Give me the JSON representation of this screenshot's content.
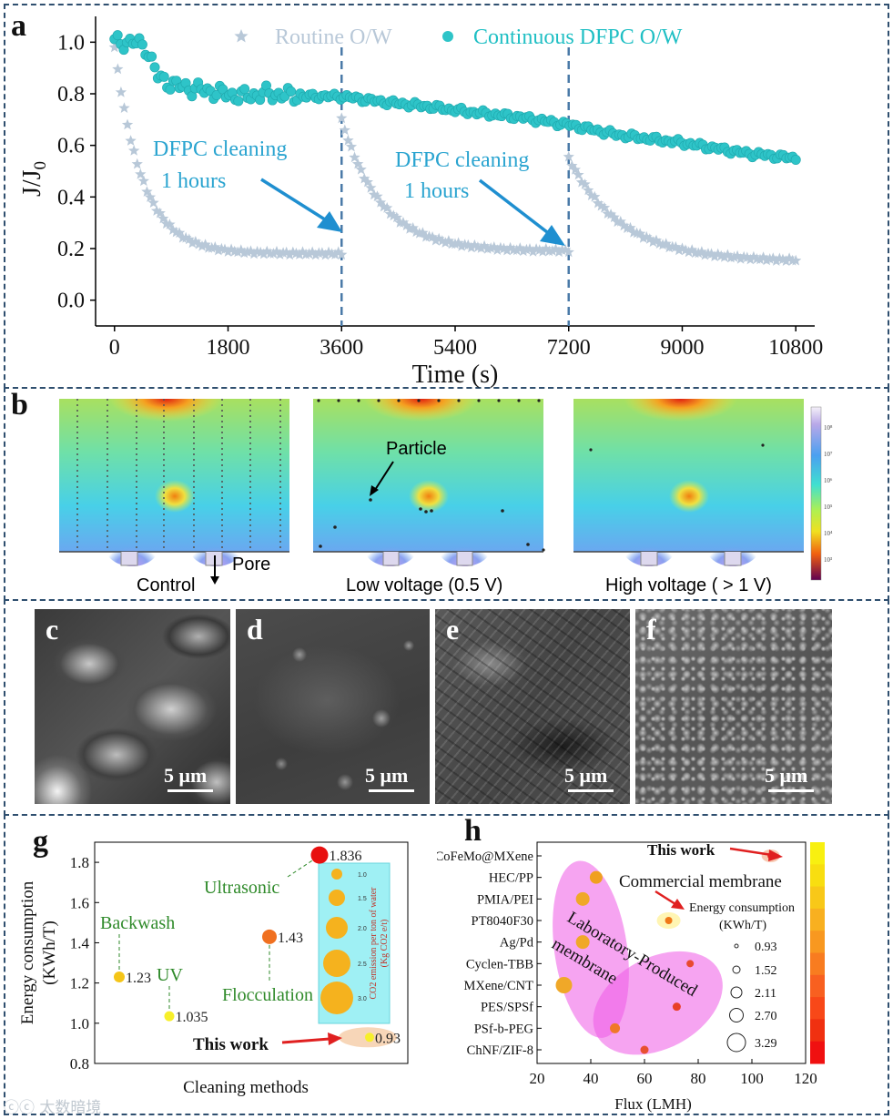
{
  "panel_a": {
    "label": "a",
    "chart_data": {
      "type": "scatter",
      "title": "",
      "xlabel": "Time (s)",
      "ylabel": "J/J0",
      "ylabel_main": "J/J",
      "ylabel_sub": "0",
      "xlim": [
        -300,
        11100
      ],
      "ylim": [
        -0.1,
        1.1
      ],
      "xticks": [
        0,
        1800,
        3600,
        5400,
        7200,
        9000,
        10800
      ],
      "yticks": [
        "0.0",
        "0.2",
        "0.4",
        "0.6",
        "0.8",
        "1.0"
      ],
      "vlines": [
        3600,
        7200
      ],
      "series": [
        {
          "name": "Routine O/W",
          "marker": "star",
          "color": "#b8c8d8",
          "segments": [
            {
              "t0": 0,
              "t1": 3600,
              "start": 0.98,
              "end": 0.18,
              "k": 0.0023
            },
            {
              "t0": 3600,
              "t1": 7200,
              "start": 0.7,
              "end": 0.19,
              "k": 0.0016
            },
            {
              "t0": 7200,
              "t1": 10800,
              "start": 0.55,
              "end": 0.15,
              "k": 0.0012
            }
          ]
        },
        {
          "name": "Continuous DFPC O/W",
          "marker": "circle",
          "color": "#2ec4c8",
          "points": [
            [
              0,
              1.0
            ],
            [
              300,
              1.0
            ],
            [
              500,
              0.98
            ],
            [
              700,
              0.86
            ],
            [
              1000,
              0.83
            ],
            [
              1500,
              0.81
            ],
            [
              2000,
              0.79
            ],
            [
              2400,
              0.8
            ],
            [
              3000,
              0.79
            ],
            [
              3600,
              0.79
            ],
            [
              4200,
              0.77
            ],
            [
              5000,
              0.75
            ],
            [
              5600,
              0.73
            ],
            [
              6400,
              0.71
            ],
            [
              7200,
              0.68
            ],
            [
              8000,
              0.64
            ],
            [
              9000,
              0.61
            ],
            [
              10000,
              0.57
            ],
            [
              10800,
              0.55
            ]
          ]
        }
      ],
      "annotations": [
        {
          "line1": "DFPC cleaning",
          "line2": "1 hours"
        },
        {
          "line1": "DFPC cleaning",
          "line2": "1 hours"
        }
      ]
    }
  },
  "panel_b": {
    "label": "b",
    "particle_label": "Particle",
    "pore_label": "Pore",
    "captions": [
      "Control",
      "Low voltage (0.5 V)",
      "High voltage ( > 1 V)"
    ],
    "colorbar_ticks": [
      "10⁸",
      "10⁷",
      "10⁶",
      "10⁵",
      "10⁴",
      "10³"
    ]
  },
  "panel_sem": [
    {
      "label": "c",
      "scale": "5 μm"
    },
    {
      "label": "d",
      "scale": "5 μm"
    },
    {
      "label": "e",
      "scale": "5 μm"
    },
    {
      "label": "f",
      "scale": "5 μm"
    }
  ],
  "panel_g": {
    "label": "g",
    "chart_data": {
      "type": "bubble",
      "xlabel": "Cleaning methods",
      "ylabel_line1": "Energy consumption",
      "ylabel_line2": "(KWh/T)",
      "ylim": [
        0.8,
        1.9
      ],
      "yticks": [
        "0.8",
        "1.0",
        "1.2",
        "1.4",
        "1.6",
        "1.8"
      ],
      "points": [
        {
          "name": "Backwash",
          "value": 1.23,
          "label": "1.23",
          "color": "#f5c518"
        },
        {
          "name": "UV",
          "value": 1.035,
          "label": "1.035",
          "color": "#f7ef2a"
        },
        {
          "name": "Flocculation",
          "value": 1.43,
          "label": "1.43",
          "color": "#f07020"
        },
        {
          "name": "Ultrasonic",
          "value": 1.836,
          "label": "1.836",
          "color": "#e81010"
        },
        {
          "name": "This work",
          "value": 0.93,
          "label": "0.93",
          "color": "#f7ef2a"
        }
      ],
      "legend_title_line1": "CO2 emission per ton of water",
      "legend_title_line2": "(Kg CO2 e/t)",
      "legend_sizes": [
        "1.0",
        "1.5",
        "2.0",
        "2.5",
        "3.0"
      ]
    }
  },
  "panel_h": {
    "label": "h",
    "chart_data": {
      "type": "bubble",
      "xlabel": "Flux (LMH)",
      "xlim": [
        20,
        120
      ],
      "xticks": [
        "20",
        "40",
        "60",
        "80",
        "100",
        "120"
      ],
      "categories": [
        "CoFeMo@MXene",
        "HEC/PP",
        "PMIA/PEI",
        "PT8040F30",
        "Ag/Pd",
        "Cyclen-TBB",
        "MXene/CNT",
        "PES/SPSf",
        "PSf-b-PEG",
        "ChNF/ZIF-8"
      ],
      "points": [
        {
          "name": "CoFeMo@MXene",
          "x": 107,
          "color": "#e82818"
        },
        {
          "name": "HEC/PP",
          "x": 42,
          "color": "#f0a020"
        },
        {
          "name": "PMIA/PEI",
          "x": 37,
          "color": "#f0a828"
        },
        {
          "name": "PT8040F30",
          "x": 69,
          "color": "#f07818"
        },
        {
          "name": "Ag/Pd",
          "x": 37,
          "color": "#f0a828"
        },
        {
          "name": "Cyclen-TBB",
          "x": 77,
          "color": "#e84a30"
        },
        {
          "name": "MXene/CNT",
          "x": 30,
          "color": "#f0a828"
        },
        {
          "name": "PES/SPSf",
          "x": 72,
          "color": "#e84028"
        },
        {
          "name": "PSf-b-PEG",
          "x": 49,
          "color": "#f07828"
        },
        {
          "name": "ChNF/ZIF-8",
          "x": 60,
          "color": "#e85030"
        }
      ],
      "this_work": "This work",
      "commercial": "Commercial membrane",
      "lab_line1": "Laboratory-Produced",
      "lab_line2": "membrane",
      "legend_title_line1": "Energy consumption",
      "legend_title_line2": "(KWh/T)",
      "legend_sizes": [
        "0.93",
        "1.52",
        "2.11",
        "2.70",
        "3.29"
      ]
    }
  },
  "watermark": "ⓒⓒ 太数暗境"
}
